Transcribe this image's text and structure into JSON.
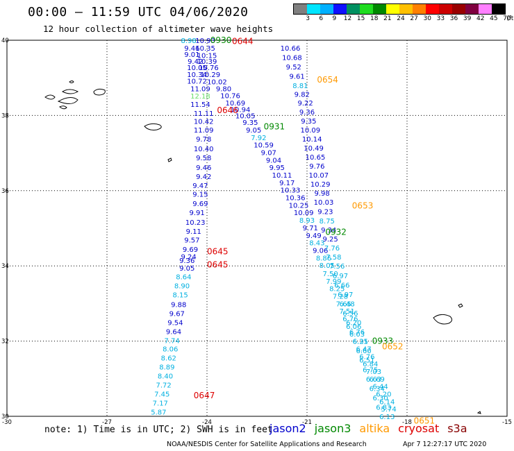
{
  "title": "00:00 – 11:59 UTC 04/06/2020",
  "subtitle": "12 hour collection of altimeter wave heights",
  "legend": {
    "unit": "(ft)",
    "labels": [
      "3",
      "6",
      "9",
      "12",
      "15",
      "18",
      "21",
      "24",
      "27",
      "30",
      "33",
      "36",
      "39",
      "42",
      "45",
      "70"
    ],
    "colors": [
      "#808080",
      "#00e5ff",
      "#00b0ff",
      "#1010ff",
      "#009060",
      "#20dd20",
      "#008800",
      "#ffff00",
      "#ffc000",
      "#ff8000",
      "#ff0000",
      "#cc0000",
      "#990000",
      "#800040",
      "#ff80ff",
      "#000000"
    ]
  },
  "axes": {
    "lon_labels": [
      "-30",
      "-27",
      "-24",
      "-21",
      "-18",
      "-15"
    ],
    "lat_labels": [
      "30",
      "32",
      "34",
      "36",
      "38",
      "40"
    ],
    "lon_range": [
      -30,
      -15
    ],
    "lat_range": [
      30,
      40
    ]
  },
  "colors": {
    "jason2": "#0000cc",
    "jason3": "#008800",
    "altika": "#ff9900",
    "cryosat": "#dd0000",
    "s3a": "#880000",
    "cyan": "#00b0e0",
    "lightgreen": "#66dd66"
  },
  "tracks": [
    {
      "id": "left",
      "points": [
        {
          "lon": -24.55,
          "lat": 40.0,
          "v": "8.98",
          "c": "cyan"
        },
        {
          "lon": -24.45,
          "lat": 39.8,
          "v": "9.46",
          "c": "jason2"
        },
        {
          "lon": -24.45,
          "lat": 39.63,
          "v": "9.01",
          "c": "jason2"
        },
        {
          "lon": -24.35,
          "lat": 39.45,
          "v": "9.42",
          "c": "jason2"
        },
        {
          "lon": -24.3,
          "lat": 39.28,
          "v": "10.05",
          "c": "jason2"
        },
        {
          "lon": -24.3,
          "lat": 39.1,
          "v": "10.34",
          "c": "jason2"
        },
        {
          "lon": -24.3,
          "lat": 38.92,
          "v": "10.72",
          "c": "jason2"
        },
        {
          "lon": -24.2,
          "lat": 38.72,
          "v": "11.09",
          "c": "jason2"
        },
        {
          "lon": -24.2,
          "lat": 38.52,
          "v": "12.18",
          "c": "lightgreen"
        },
        {
          "lon": -24.2,
          "lat": 38.3,
          "v": "11.54",
          "c": "jason2"
        },
        {
          "lon": -24.1,
          "lat": 38.06,
          "v": "11.11",
          "c": "jason2"
        },
        {
          "lon": -24.1,
          "lat": 37.85,
          "v": "10.42",
          "c": "jason2"
        },
        {
          "lon": -24.1,
          "lat": 37.62,
          "v": "11.09",
          "c": "jason2"
        },
        {
          "lon": -24.1,
          "lat": 37.38,
          "v": "9.78",
          "c": "jason2"
        },
        {
          "lon": -24.1,
          "lat": 37.12,
          "v": "10.40",
          "c": "jason2"
        },
        {
          "lon": -24.1,
          "lat": 36.88,
          "v": "9.58",
          "c": "jason2"
        },
        {
          "lon": -24.1,
          "lat": 36.62,
          "v": "9.46",
          "c": "jason2"
        },
        {
          "lon": -24.1,
          "lat": 36.38,
          "v": "9.42",
          "c": "jason2"
        },
        {
          "lon": -24.2,
          "lat": 36.14,
          "v": "9.47",
          "c": "jason2"
        },
        {
          "lon": -24.2,
          "lat": 35.91,
          "v": "9.15",
          "c": "jason2"
        },
        {
          "lon": -24.2,
          "lat": 35.66,
          "v": "9.69",
          "c": "jason2"
        },
        {
          "lon": -24.3,
          "lat": 35.42,
          "v": "9.91",
          "c": "jason2"
        },
        {
          "lon": -24.35,
          "lat": 35.17,
          "v": "10.23",
          "c": "jason2"
        },
        {
          "lon": -24.4,
          "lat": 34.93,
          "v": "9.11",
          "c": "jason2"
        },
        {
          "lon": -24.45,
          "lat": 34.7,
          "v": "9.57",
          "c": "jason2"
        },
        {
          "lon": -24.5,
          "lat": 34.45,
          "v": "9.69",
          "c": "jason2"
        },
        {
          "lon": -24.55,
          "lat": 34.25,
          "v": "9.24",
          "c": "jason2"
        },
        {
          "lon": -24.6,
          "lat": 34.15,
          "v": "9.36",
          "c": "jason2"
        },
        {
          "lon": -24.6,
          "lat": 33.95,
          "v": "9.05",
          "c": "jason2"
        },
        {
          "lon": -24.7,
          "lat": 33.72,
          "v": "8.64",
          "c": "cyan"
        },
        {
          "lon": -24.75,
          "lat": 33.48,
          "v": "8.90",
          "c": "cyan"
        },
        {
          "lon": -24.8,
          "lat": 33.24,
          "v": "8.15",
          "c": "cyan"
        },
        {
          "lon": -24.85,
          "lat": 32.98,
          "v": "9.88",
          "c": "jason2"
        },
        {
          "lon": -24.9,
          "lat": 32.74,
          "v": "9.67",
          "c": "jason2"
        },
        {
          "lon": -24.95,
          "lat": 32.5,
          "v": "9.54",
          "c": "jason2"
        },
        {
          "lon": -25.0,
          "lat": 32.26,
          "v": "9.64",
          "c": "jason2"
        },
        {
          "lon": -25.05,
          "lat": 32.02,
          "v": "7.74",
          "c": "cyan"
        },
        {
          "lon": -25.1,
          "lat": 31.8,
          "v": "8.06",
          "c": "cyan"
        },
        {
          "lon": -25.15,
          "lat": 31.56,
          "v": "8.62",
          "c": "cyan"
        },
        {
          "lon": -25.2,
          "lat": 31.32,
          "v": "8.89",
          "c": "cyan"
        },
        {
          "lon": -25.25,
          "lat": 31.08,
          "v": "8.40",
          "c": "cyan"
        },
        {
          "lon": -25.3,
          "lat": 30.84,
          "v": "7.72",
          "c": "cyan"
        },
        {
          "lon": -25.35,
          "lat": 30.6,
          "v": "7.45",
          "c": "cyan"
        },
        {
          "lon": -25.4,
          "lat": 30.36,
          "v": "7.17",
          "c": "cyan"
        },
        {
          "lon": -25.45,
          "lat": 30.12,
          "v": "5.87",
          "c": "cyan"
        }
      ]
    },
    {
      "id": "middle",
      "points": [
        {
          "lon": -24.05,
          "lat": 40.0,
          "v": "10.93",
          "c": "jason2"
        },
        {
          "lon": -24.05,
          "lat": 39.8,
          "v": "10.35",
          "c": "jason2"
        },
        {
          "lon": -24.0,
          "lat": 39.6,
          "v": "10.15",
          "c": "jason2"
        },
        {
          "lon": -24.0,
          "lat": 39.45,
          "v": "10.39",
          "c": "jason2"
        },
        {
          "lon": -23.95,
          "lat": 39.28,
          "v": "10.76",
          "c": "jason2"
        },
        {
          "lon": -23.9,
          "lat": 39.1,
          "v": "10.29",
          "c": "jason2"
        },
        {
          "lon": -23.7,
          "lat": 38.9,
          "v": "10.02",
          "c": "jason2"
        },
        {
          "lon": -23.5,
          "lat": 38.72,
          "v": "9.80",
          "c": "jason2"
        },
        {
          "lon": -23.3,
          "lat": 38.53,
          "v": "10.76",
          "c": "jason2"
        },
        {
          "lon": -23.15,
          "lat": 38.34,
          "v": "10.69",
          "c": "jason2"
        },
        {
          "lon": -23.0,
          "lat": 38.16,
          "v": "10.94",
          "c": "jason2"
        },
        {
          "lon": -22.85,
          "lat": 38.0,
          "v": "10.05",
          "c": "jason2"
        },
        {
          "lon": -22.7,
          "lat": 37.82,
          "v": "9.35",
          "c": "jason2"
        },
        {
          "lon": -22.6,
          "lat": 37.62,
          "v": "9.05",
          "c": "jason2"
        },
        {
          "lon": -22.45,
          "lat": 37.42,
          "v": "7.92",
          "c": "cyan"
        },
        {
          "lon": -22.3,
          "lat": 37.22,
          "v": "10.59",
          "c": "jason2"
        },
        {
          "lon": -22.15,
          "lat": 37.02,
          "v": "9.07",
          "c": "jason2"
        },
        {
          "lon": -22.0,
          "lat": 36.82,
          "v": "9.04",
          "c": "jason2"
        },
        {
          "lon": -21.9,
          "lat": 36.62,
          "v": "9.95",
          "c": "jason2"
        },
        {
          "lon": -21.75,
          "lat": 36.42,
          "v": "10.11",
          "c": "jason2"
        },
        {
          "lon": -21.6,
          "lat": 36.22,
          "v": "9.17",
          "c": "jason2"
        },
        {
          "lon": -21.5,
          "lat": 36.02,
          "v": "10.33",
          "c": "jason2"
        },
        {
          "lon": -21.35,
          "lat": 35.82,
          "v": "10.36",
          "c": "jason2"
        },
        {
          "lon": -21.25,
          "lat": 35.62,
          "v": "10.25",
          "c": "jason2"
        },
        {
          "lon": -21.1,
          "lat": 35.42,
          "v": "10.09",
          "c": "jason2"
        },
        {
          "lon": -21.0,
          "lat": 35.22,
          "v": "8.93",
          "c": "cyan"
        },
        {
          "lon": -20.9,
          "lat": 35.02,
          "v": "9.71",
          "c": "jason2"
        },
        {
          "lon": -20.8,
          "lat": 34.82,
          "v": "9.49",
          "c": "jason2"
        },
        {
          "lon": -20.7,
          "lat": 34.62,
          "v": "8.43",
          "c": "cyan"
        },
        {
          "lon": -20.6,
          "lat": 34.42,
          "v": "9.06",
          "c": "jason2"
        },
        {
          "lon": -20.5,
          "lat": 34.22,
          "v": "8.86",
          "c": "cyan"
        },
        {
          "lon": -20.4,
          "lat": 34.02,
          "v": "8.05",
          "c": "cyan"
        },
        {
          "lon": -20.3,
          "lat": 33.8,
          "v": "7.50",
          "c": "cyan"
        },
        {
          "lon": -20.2,
          "lat": 33.6,
          "v": "7.99",
          "c": "cyan"
        },
        {
          "lon": -20.1,
          "lat": 33.4,
          "v": "8.25",
          "c": "cyan"
        },
        {
          "lon": -20.0,
          "lat": 33.2,
          "v": "7.28",
          "c": "cyan"
        },
        {
          "lon": -19.9,
          "lat": 33.0,
          "v": "7.65",
          "c": "cyan"
        },
        {
          "lon": -19.8,
          "lat": 32.8,
          "v": "7.51",
          "c": "cyan"
        },
        {
          "lon": -19.7,
          "lat": 32.6,
          "v": "6.76",
          "c": "cyan"
        },
        {
          "lon": -19.6,
          "lat": 32.4,
          "v": "6.06",
          "c": "cyan"
        },
        {
          "lon": -19.5,
          "lat": 32.2,
          "v": "6.03",
          "c": "cyan"
        },
        {
          "lon": -19.4,
          "lat": 32.0,
          "v": "6.21",
          "c": "cyan"
        },
        {
          "lon": -19.3,
          "lat": 31.8,
          "v": "6.47",
          "c": "cyan"
        },
        {
          "lon": -19.2,
          "lat": 31.6,
          "v": "6.76",
          "c": "cyan"
        },
        {
          "lon": -19.1,
          "lat": 31.4,
          "v": "6.84",
          "c": "cyan"
        },
        {
          "lon": -19.0,
          "lat": 31.2,
          "v": "7.03",
          "c": "cyan"
        },
        {
          "lon": -18.9,
          "lat": 31.0,
          "v": "6.69",
          "c": "cyan"
        },
        {
          "lon": -18.8,
          "lat": 30.8,
          "v": "6.44",
          "c": "cyan"
        },
        {
          "lon": -18.7,
          "lat": 30.6,
          "v": "6.20",
          "c": "cyan"
        },
        {
          "lon": -18.6,
          "lat": 30.4,
          "v": "6.14",
          "c": "cyan"
        },
        {
          "lon": -18.55,
          "lat": 30.2,
          "v": "5.74",
          "c": "cyan"
        }
      ]
    },
    {
      "id": "right",
      "points": [
        {
          "lon": -21.5,
          "lat": 39.8,
          "v": "10.66",
          "c": "jason2"
        },
        {
          "lon": -21.45,
          "lat": 39.55,
          "v": "10.68",
          "c": "jason2"
        },
        {
          "lon": -21.4,
          "lat": 39.3,
          "v": "9.52",
          "c": "jason2"
        },
        {
          "lon": -21.3,
          "lat": 39.05,
          "v": "9.61",
          "c": "jason2"
        },
        {
          "lon": -21.2,
          "lat": 38.8,
          "v": "8.81",
          "c": "cyan"
        },
        {
          "lon": -21.15,
          "lat": 38.57,
          "v": "9.82",
          "c": "jason2"
        },
        {
          "lon": -21.05,
          "lat": 38.34,
          "v": "9.22",
          "c": "jason2"
        },
        {
          "lon": -21.0,
          "lat": 38.1,
          "v": "9.36",
          "c": "jason2"
        },
        {
          "lon": -20.95,
          "lat": 37.86,
          "v": "9.35",
          "c": "jason2"
        },
        {
          "lon": -20.9,
          "lat": 37.62,
          "v": "10.09",
          "c": "jason2"
        },
        {
          "lon": -20.85,
          "lat": 37.38,
          "v": "10.14",
          "c": "jason2"
        },
        {
          "lon": -20.8,
          "lat": 37.14,
          "v": "10.49",
          "c": "jason2"
        },
        {
          "lon": -20.75,
          "lat": 36.9,
          "v": "10.65",
          "c": "jason2"
        },
        {
          "lon": -20.7,
          "lat": 36.66,
          "v": "9.76",
          "c": "jason2"
        },
        {
          "lon": -20.65,
          "lat": 36.42,
          "v": "10.07",
          "c": "jason2"
        },
        {
          "lon": -20.6,
          "lat": 36.18,
          "v": "10.29",
          "c": "jason2"
        },
        {
          "lon": -20.55,
          "lat": 35.94,
          "v": "9.98",
          "c": "jason2"
        },
        {
          "lon": -20.5,
          "lat": 35.7,
          "v": "10.03",
          "c": "jason2"
        },
        {
          "lon": -20.45,
          "lat": 35.45,
          "v": "9.23",
          "c": "jason2"
        },
        {
          "lon": -20.4,
          "lat": 35.2,
          "v": "8.75",
          "c": "cyan"
        },
        {
          "lon": -20.35,
          "lat": 34.96,
          "v": "9.34",
          "c": "jason2"
        },
        {
          "lon": -20.3,
          "lat": 34.72,
          "v": "9.25",
          "c": "jason2"
        },
        {
          "lon": -20.25,
          "lat": 34.48,
          "v": "7.76",
          "c": "cyan"
        },
        {
          "lon": -20.2,
          "lat": 34.24,
          "v": "7.58",
          "c": "cyan"
        },
        {
          "lon": -20.1,
          "lat": 34.0,
          "v": "7.56",
          "c": "cyan"
        },
        {
          "lon": -20.0,
          "lat": 33.75,
          "v": "6.97",
          "c": "cyan"
        },
        {
          "lon": -19.95,
          "lat": 33.5,
          "v": "6.66",
          "c": "cyan"
        },
        {
          "lon": -19.85,
          "lat": 33.25,
          "v": "6.97",
          "c": "cyan"
        },
        {
          "lon": -19.8,
          "lat": 33.0,
          "v": "6.48",
          "c": "cyan"
        },
        {
          "lon": -19.7,
          "lat": 32.75,
          "v": "6.56",
          "c": "cyan"
        },
        {
          "lon": -19.6,
          "lat": 32.5,
          "v": "6.20",
          "c": "cyan"
        },
        {
          "lon": -19.5,
          "lat": 32.25,
          "v": "6.76",
          "c": "cyan"
        },
        {
          "lon": -19.4,
          "lat": 32.0,
          "v": "6.35",
          "c": "cyan"
        },
        {
          "lon": -19.3,
          "lat": 31.75,
          "v": "6.60",
          "c": "cyan"
        },
        {
          "lon": -19.2,
          "lat": 31.5,
          "v": "6.51",
          "c": "cyan"
        },
        {
          "lon": -19.1,
          "lat": 31.25,
          "v": "6.75",
          "c": "cyan"
        },
        {
          "lon": -19.0,
          "lat": 31.0,
          "v": "6.63",
          "c": "cyan"
        },
        {
          "lon": -18.9,
          "lat": 30.75,
          "v": "6.34",
          "c": "cyan"
        },
        {
          "lon": -18.8,
          "lat": 30.5,
          "v": "6.30",
          "c": "cyan"
        },
        {
          "lon": -18.7,
          "lat": 30.25,
          "v": "6.83",
          "c": "cyan"
        },
        {
          "lon": -18.6,
          "lat": 30.0,
          "v": "6.13",
          "c": "cyan"
        }
      ]
    }
  ],
  "pass_labels": [
    {
      "text": "0930",
      "lon": -23.9,
      "lat": 40.0,
      "c": "jason3"
    },
    {
      "text": "0644",
      "lon": -23.25,
      "lat": 39.97,
      "c": "cryosat"
    },
    {
      "text": "0654",
      "lon": -20.7,
      "lat": 38.95,
      "c": "altika"
    },
    {
      "text": "0646",
      "lon": -23.7,
      "lat": 38.14,
      "c": "cryosat"
    },
    {
      "text": "0931",
      "lon": -22.3,
      "lat": 37.7,
      "c": "jason3"
    },
    {
      "text": "0653",
      "lon": -19.65,
      "lat": 35.6,
      "c": "altika"
    },
    {
      "text": "0932",
      "lon": -20.45,
      "lat": 34.9,
      "c": "jason3"
    },
    {
      "text": "0645",
      "lon": -24.0,
      "lat": 34.38,
      "c": "cryosat"
    },
    {
      "text": "0645",
      "lon": -24.0,
      "lat": 34.03,
      "c": "cryosat"
    },
    {
      "text": "0933",
      "lon": -19.05,
      "lat": 32.0,
      "c": "jason3"
    },
    {
      "text": "0652",
      "lon": -18.75,
      "lat": 31.85,
      "c": "altika"
    },
    {
      "text": "0647",
      "lon": -24.4,
      "lat": 30.55,
      "c": "cryosat"
    },
    {
      "text": "0651",
      "lon": -17.8,
      "lat": 29.88,
      "c": "altika"
    }
  ],
  "footer": {
    "note": "note:  1) Time is in UTC;  2) SWH is in feet",
    "satellites": [
      {
        "name": "jason2",
        "c": "jason2"
      },
      {
        "name": "jason3",
        "c": "jason3"
      },
      {
        "name": "altika",
        "c": "altika"
      },
      {
        "name": "cryosat",
        "c": "cryosat"
      },
      {
        "name": "s3a",
        "c": "s3a"
      }
    ],
    "credit": "NOAA/NESDIS Center for Satellite Applications and Research",
    "timestamp": "Apr  7 12:27:17 UTC 2020"
  }
}
